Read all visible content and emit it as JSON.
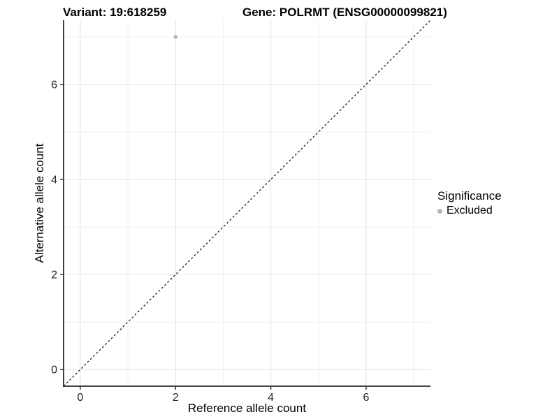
{
  "header": {
    "title_left": "Variant: 19:618259",
    "title_right": "Gene: POLRMT (ENSG00000099821)"
  },
  "chart_data": {
    "type": "scatter",
    "title": "Variant: 19:618259   Gene: POLRMT (ENSG00000099821)",
    "xlabel": "Reference allele count",
    "ylabel": "Alternative allele count",
    "xlim": [
      -0.35,
      7.35
    ],
    "ylim": [
      -0.35,
      7.35
    ],
    "x_breaks": [
      0,
      2,
      4,
      6
    ],
    "y_breaks": [
      0,
      2,
      4,
      6
    ],
    "x_minor_breaks": [
      1,
      3,
      5,
      7
    ],
    "y_minor_breaks": [
      1,
      3,
      5,
      7
    ],
    "grid": true,
    "points": [
      {
        "x": 2,
        "y": 7,
        "series": "Excluded"
      }
    ],
    "reference_line": {
      "slope": 1,
      "intercept": 0,
      "style": "dashed"
    },
    "legend": {
      "position": "right",
      "title": "Significance",
      "entries": [
        {
          "label": "Excluded",
          "color": "#b5b5b5"
        }
      ]
    },
    "colors": {
      "major_grid": "#e3e3e3",
      "minor_grid": "#f0f0f0",
      "axis_line": "#2b2b2b",
      "reference_line": "#111111",
      "tick_text": "#262626",
      "point": "#b5b5b5"
    }
  }
}
